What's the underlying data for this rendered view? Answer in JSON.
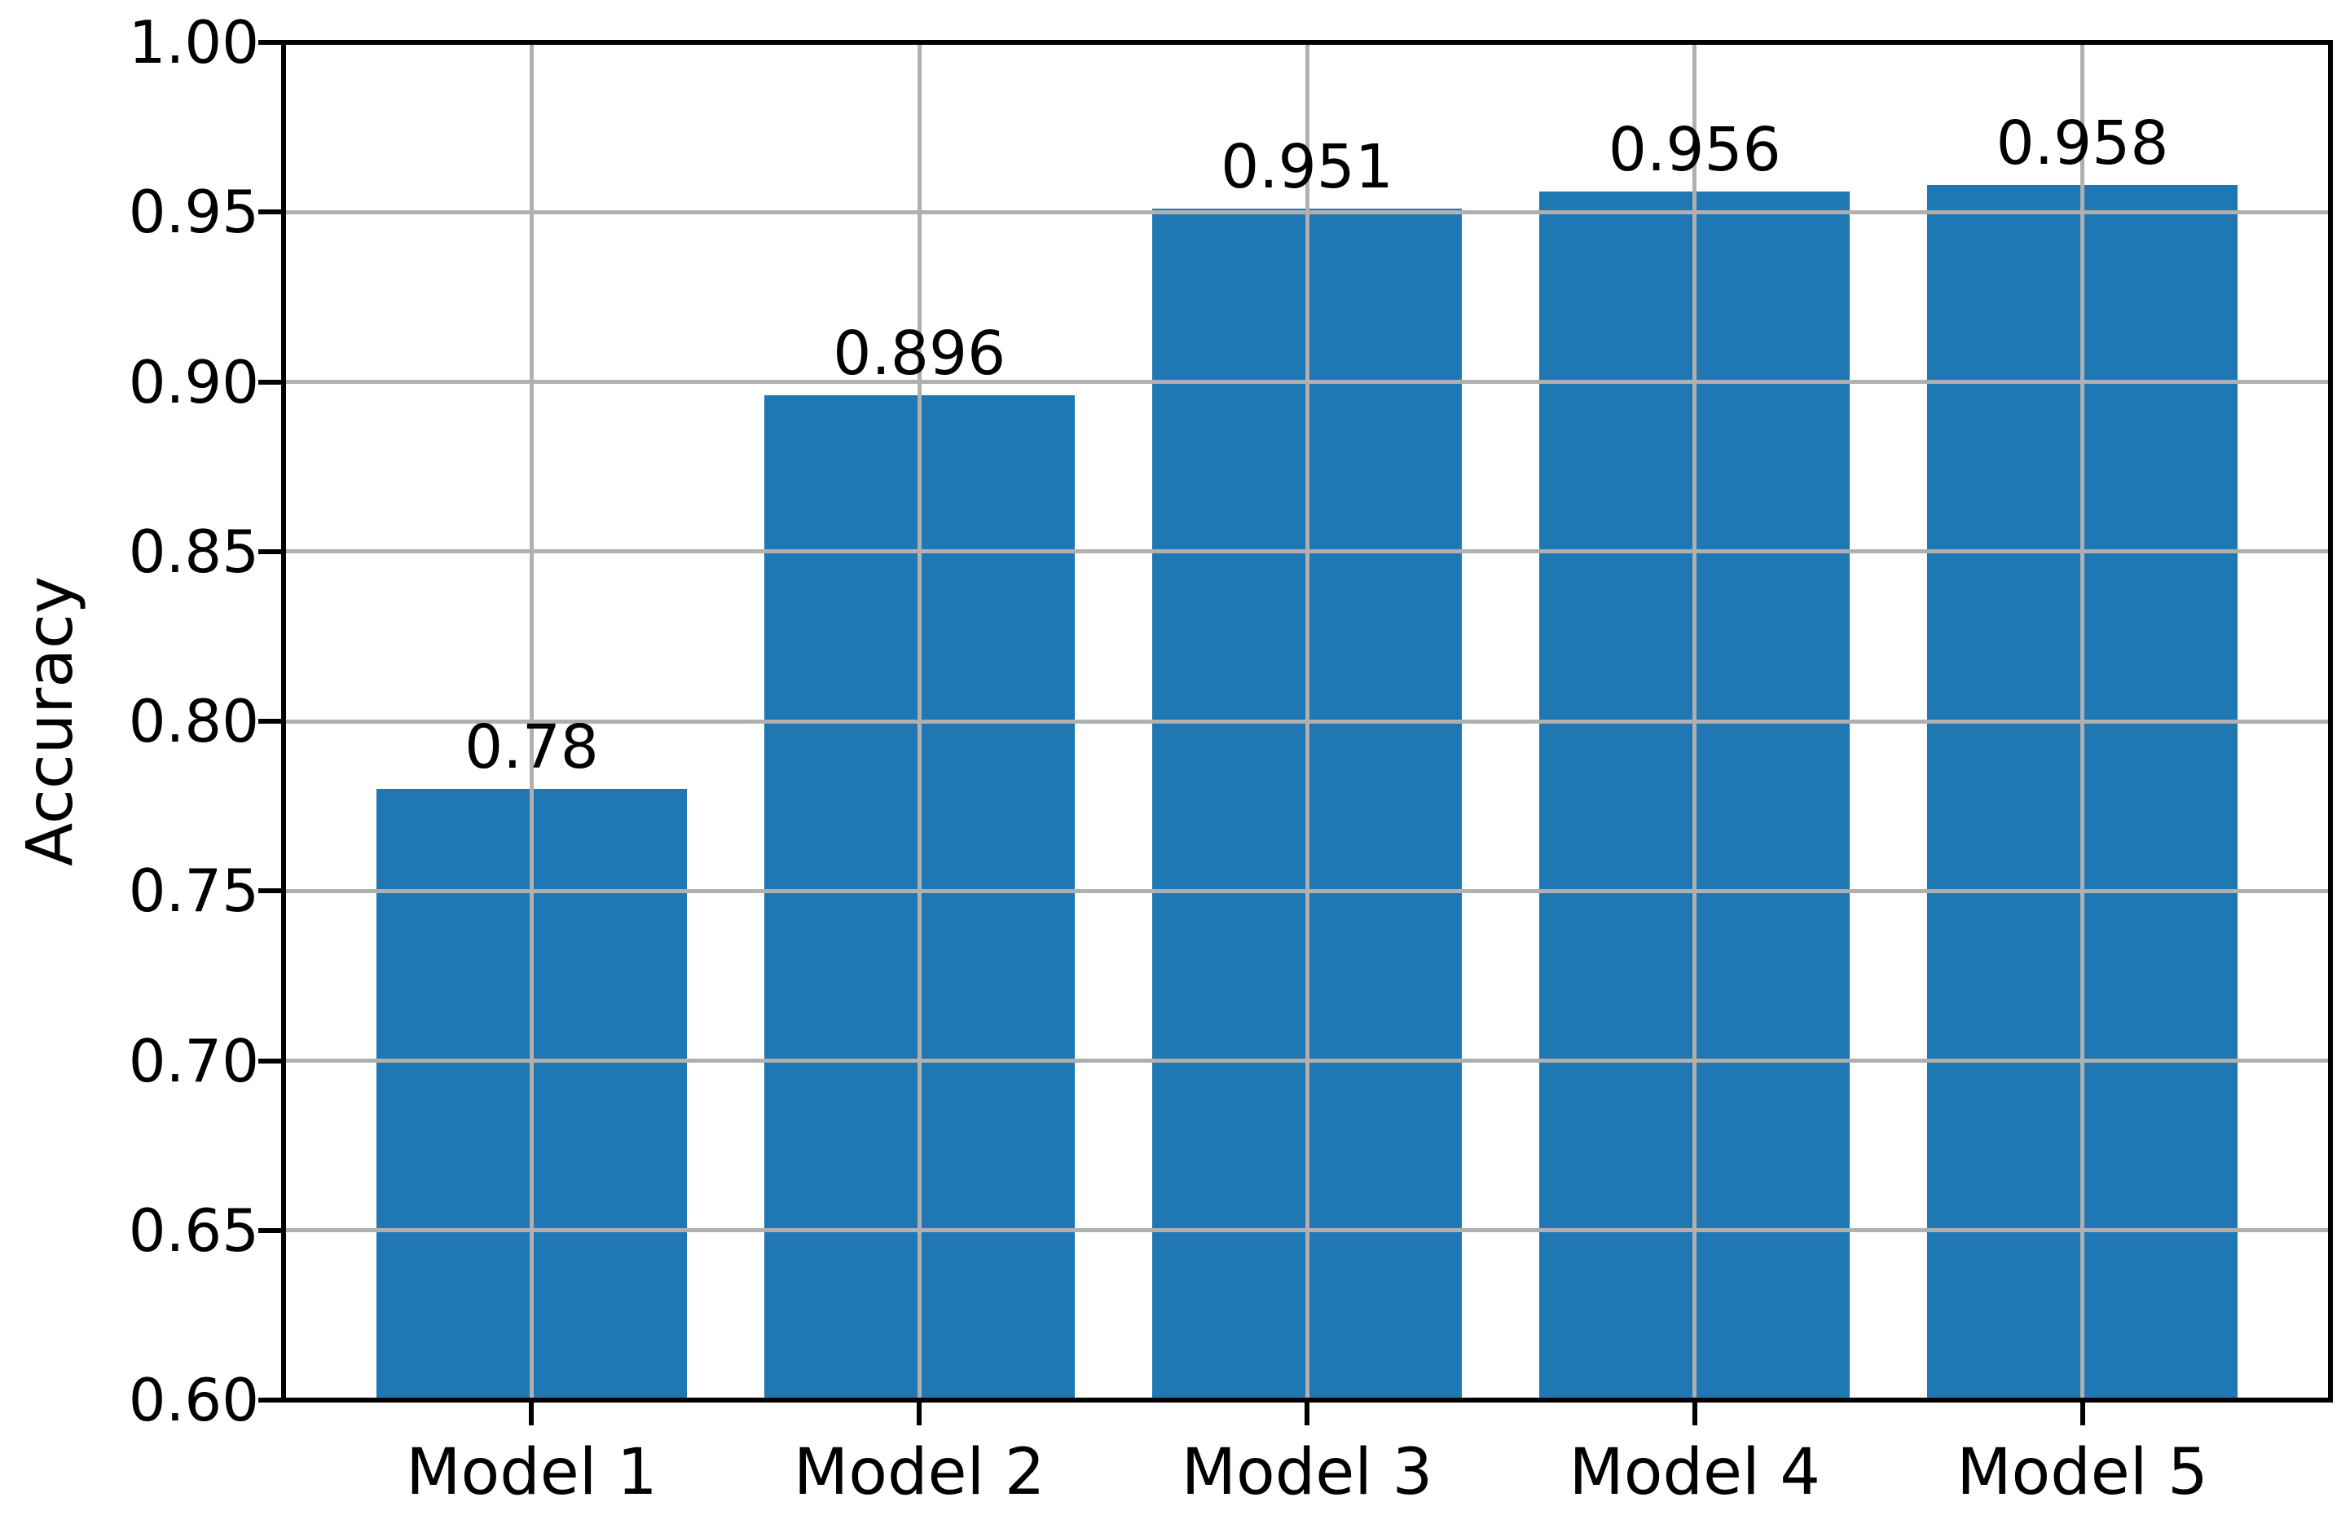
{
  "chart_data": {
    "type": "bar",
    "categories": [
      "Model 1",
      "Model 2",
      "Model 3",
      "Model 4",
      "Model 5"
    ],
    "values": [
      0.78,
      0.896,
      0.951,
      0.956,
      0.958
    ],
    "value_labels": [
      "0.78",
      "0.896",
      "0.951",
      "0.956",
      "0.958"
    ],
    "title": "",
    "xlabel": "",
    "ylabel": "Accuracy",
    "ylim": [
      0.6,
      1.0
    ],
    "yticks": [
      0.6,
      0.65,
      0.7,
      0.75,
      0.8,
      0.85,
      0.9,
      0.95,
      1.0
    ],
    "ytick_labels": [
      "0.60",
      "0.65",
      "0.70",
      "0.75",
      "0.80",
      "0.85",
      "0.90",
      "0.95",
      "1.00"
    ],
    "grid": true,
    "grid_on_top_of_bars": true,
    "legend": "none",
    "bar_color": "#1f77b4",
    "grid_color": "#b0b0b0",
    "spine_color": "#000000",
    "text_color": "#000000",
    "bar_width_fraction": 0.8
  }
}
